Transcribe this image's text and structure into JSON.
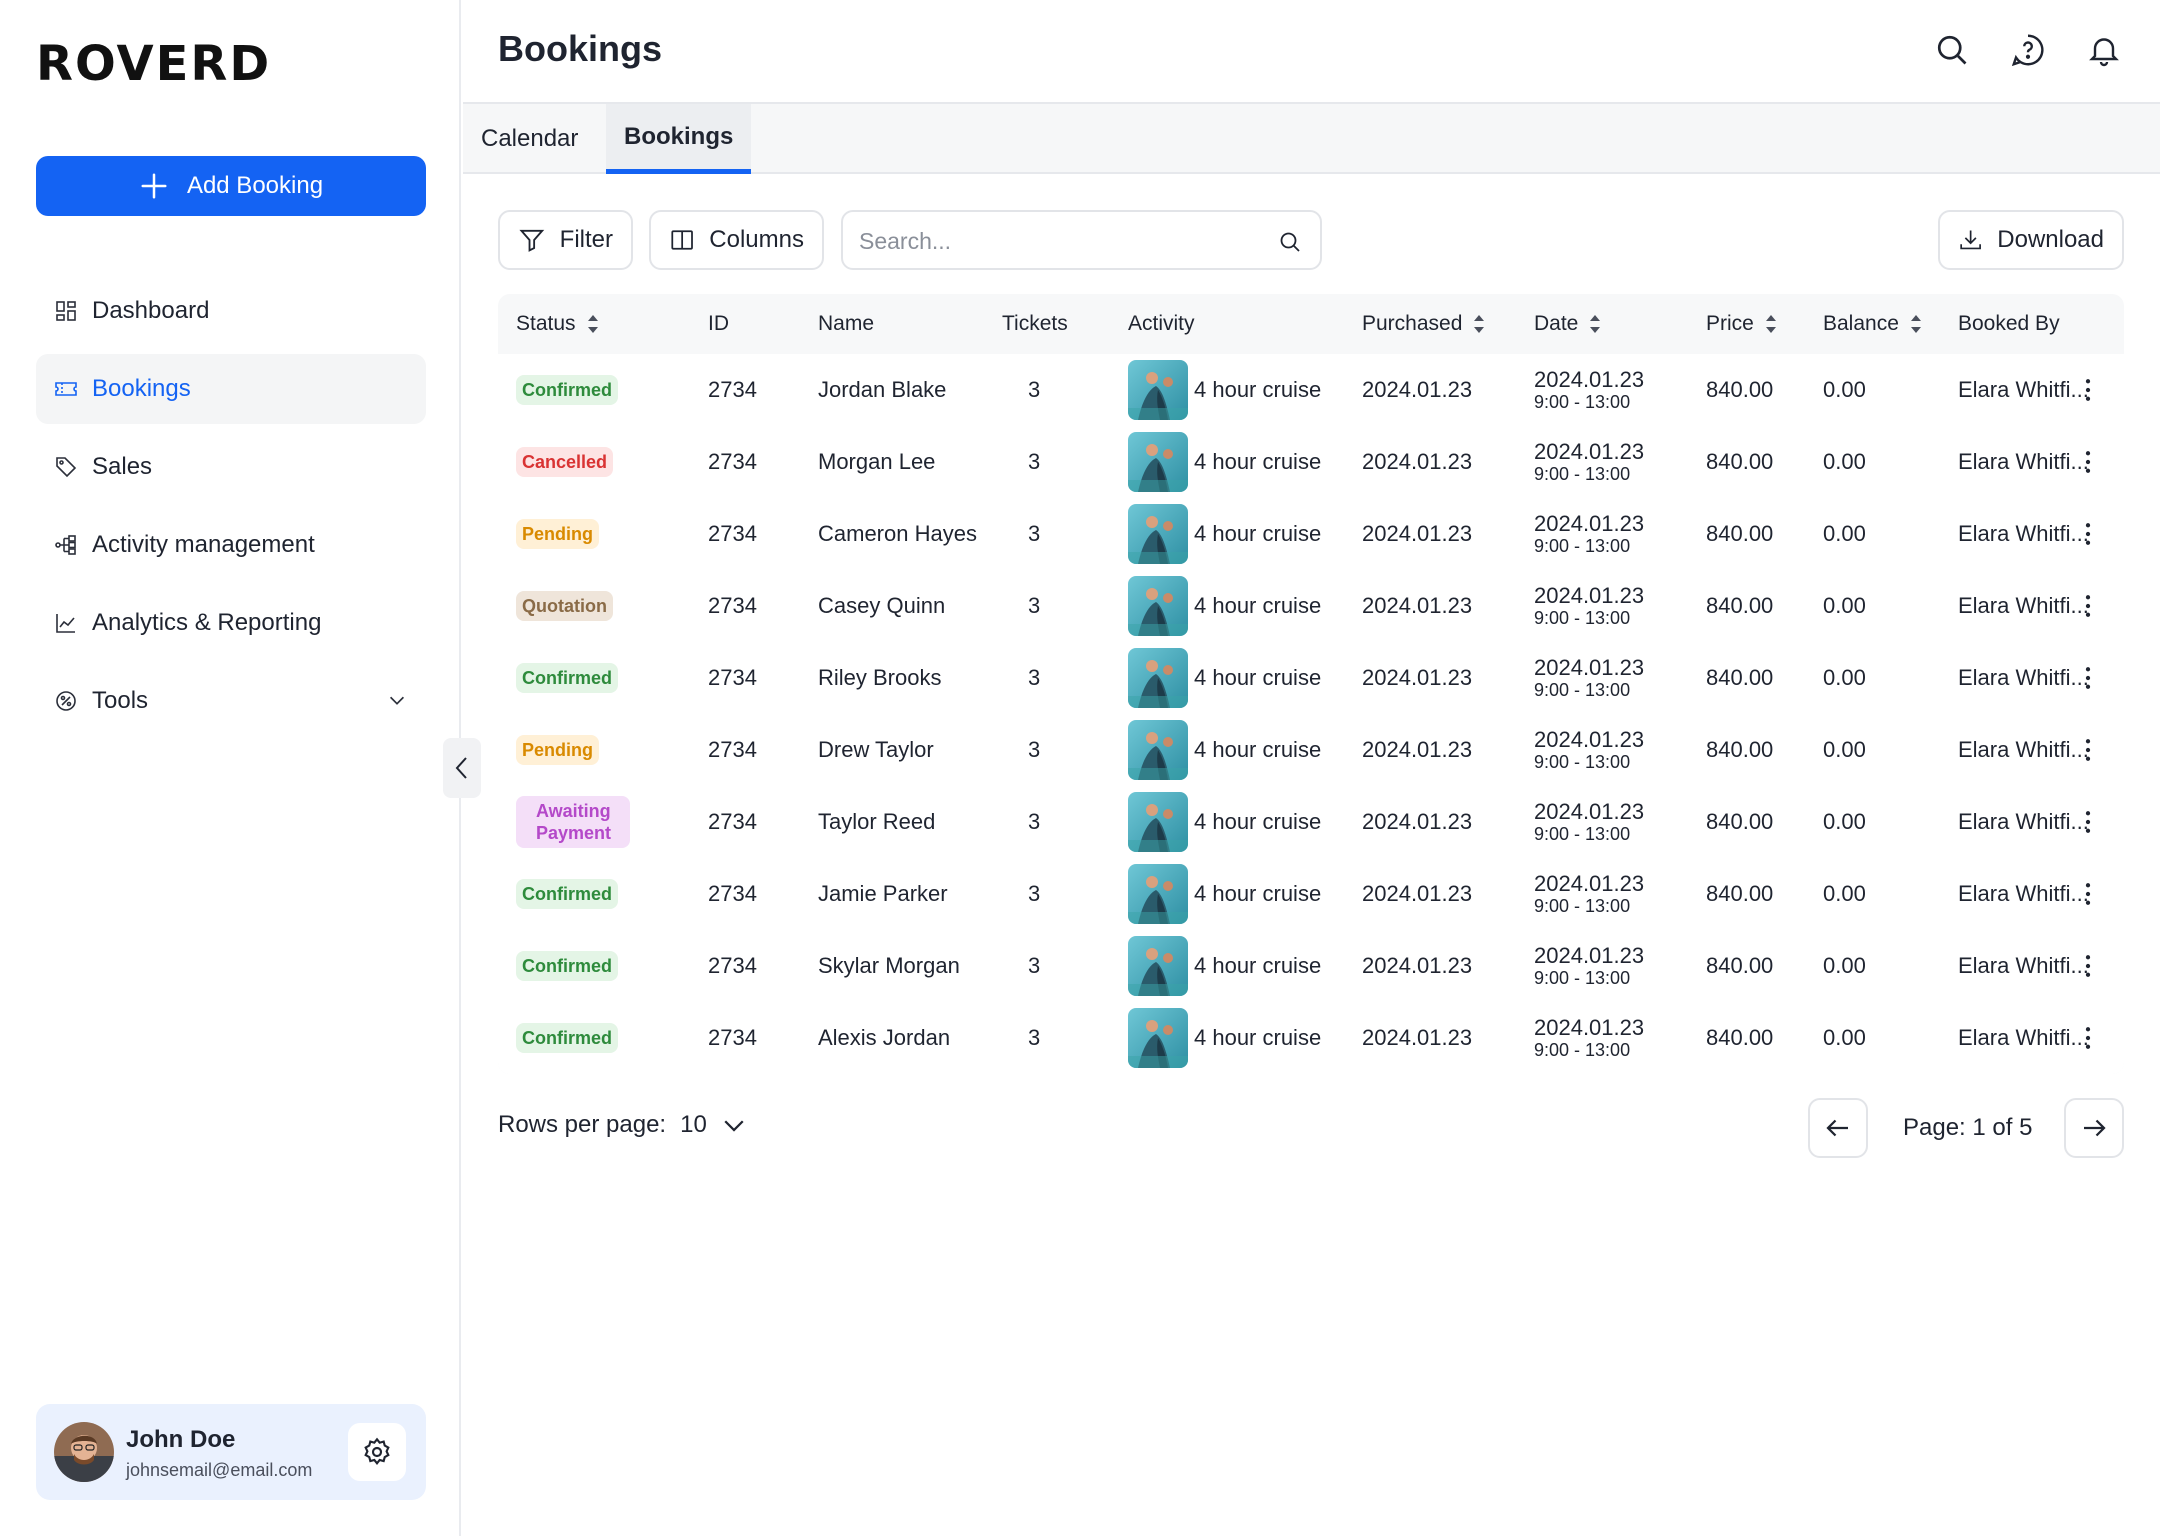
{
  "brand": {
    "logo_text": "ROVERD"
  },
  "sidebar": {
    "add_button": "Add Booking",
    "items": [
      {
        "label": "Dashboard",
        "icon": "dashboard-icon",
        "active": false
      },
      {
        "label": "Bookings",
        "icon": "ticket-icon",
        "active": true
      },
      {
        "label": "Sales",
        "icon": "tag-icon",
        "active": false
      },
      {
        "label": "Activity management",
        "icon": "flow-icon",
        "active": false
      },
      {
        "label": "Analytics & Reporting",
        "icon": "chart-icon",
        "active": false
      },
      {
        "label": "Tools",
        "icon": "tools-icon",
        "active": false
      }
    ],
    "user": {
      "name": "John Doe",
      "email": "johnsemail@email.com"
    }
  },
  "header": {
    "title": "Bookings"
  },
  "tabs": [
    {
      "label": "Calendar",
      "active": false
    },
    {
      "label": "Bookings",
      "active": true
    }
  ],
  "toolbar": {
    "filter_label": "Filter",
    "columns_label": "Columns",
    "search_placeholder": "Search...",
    "download_label": "Download"
  },
  "table": {
    "columns": [
      "Status",
      "ID",
      "Name",
      "Tickets",
      "Activity",
      "Purchased",
      "Date",
      "Price",
      "Balance",
      "Booked By"
    ],
    "rows": [
      {
        "status": "Confirmed",
        "kind": "confirmed",
        "id": "2734",
        "name": "Jordan Blake",
        "tickets": "3",
        "activity": "4 hour cruise",
        "purchased": "2024.01.23",
        "date": "2024.01.23",
        "time": "9:00 - 13:00",
        "price": "840.00",
        "balance": "0.00",
        "booked_by": "Elara Whitfi..."
      },
      {
        "status": "Cancelled",
        "kind": "cancelled",
        "id": "2734",
        "name": "Morgan Lee",
        "tickets": "3",
        "activity": "4 hour cruise",
        "purchased": "2024.01.23",
        "date": "2024.01.23",
        "time": "9:00 - 13:00",
        "price": "840.00",
        "balance": "0.00",
        "booked_by": "Elara Whitfi..."
      },
      {
        "status": "Pending",
        "kind": "pending",
        "id": "2734",
        "name": "Cameron Hayes",
        "tickets": "3",
        "activity": "4 hour cruise",
        "purchased": "2024.01.23",
        "date": "2024.01.23",
        "time": "9:00 - 13:00",
        "price": "840.00",
        "balance": "0.00",
        "booked_by": "Elara Whitfi..."
      },
      {
        "status": "Quotation",
        "kind": "quotation",
        "id": "2734",
        "name": "Casey Quinn",
        "tickets": "3",
        "activity": "4 hour cruise",
        "purchased": "2024.01.23",
        "date": "2024.01.23",
        "time": "9:00 - 13:00",
        "price": "840.00",
        "balance": "0.00",
        "booked_by": "Elara Whitfi..."
      },
      {
        "status": "Confirmed",
        "kind": "confirmed",
        "id": "2734",
        "name": "Riley Brooks",
        "tickets": "3",
        "activity": "4 hour cruise",
        "purchased": "2024.01.23",
        "date": "2024.01.23",
        "time": "9:00 - 13:00",
        "price": "840.00",
        "balance": "0.00",
        "booked_by": "Elara Whitfi..."
      },
      {
        "status": "Pending",
        "kind": "pending",
        "id": "2734",
        "name": "Drew Taylor",
        "tickets": "3",
        "activity": "4 hour cruise",
        "purchased": "2024.01.23",
        "date": "2024.01.23",
        "time": "9:00 - 13:00",
        "price": "840.00",
        "balance": "0.00",
        "booked_by": "Elara Whitfi..."
      },
      {
        "status": "Awaiting Payment",
        "kind": "awaiting",
        "id": "2734",
        "name": "Taylor Reed",
        "tickets": "3",
        "activity": "4 hour cruise",
        "purchased": "2024.01.23",
        "date": "2024.01.23",
        "time": "9:00 - 13:00",
        "price": "840.00",
        "balance": "0.00",
        "booked_by": "Elara Whitfi..."
      },
      {
        "status": "Confirmed",
        "kind": "confirmed",
        "id": "2734",
        "name": "Jamie Parker",
        "tickets": "3",
        "activity": "4 hour cruise",
        "purchased": "2024.01.23",
        "date": "2024.01.23",
        "time": "9:00 - 13:00",
        "price": "840.00",
        "balance": "0.00",
        "booked_by": "Elara Whitfi..."
      },
      {
        "status": "Confirmed",
        "kind": "confirmed",
        "id": "2734",
        "name": "Skylar Morgan",
        "tickets": "3",
        "activity": "4 hour cruise",
        "purchased": "2024.01.23",
        "date": "2024.01.23",
        "time": "9:00 - 13:00",
        "price": "840.00",
        "balance": "0.00",
        "booked_by": "Elara Whitfi..."
      },
      {
        "status": "Confirmed",
        "kind": "confirmed",
        "id": "2734",
        "name": "Alexis Jordan",
        "tickets": "3",
        "activity": "4 hour cruise",
        "purchased": "2024.01.23",
        "date": "2024.01.23",
        "time": "9:00 - 13:00",
        "price": "840.00",
        "balance": "0.00",
        "booked_by": "Elara Whitfi..."
      }
    ]
  },
  "pagination": {
    "rows_label": "Rows per page:",
    "rows_value": "10",
    "page_label": "Page: 1 of 5"
  },
  "colors": {
    "accent": "#1463f3",
    "active_nav_bg": "#f4f5f6",
    "user_card_bg": "#eaf1fe"
  }
}
